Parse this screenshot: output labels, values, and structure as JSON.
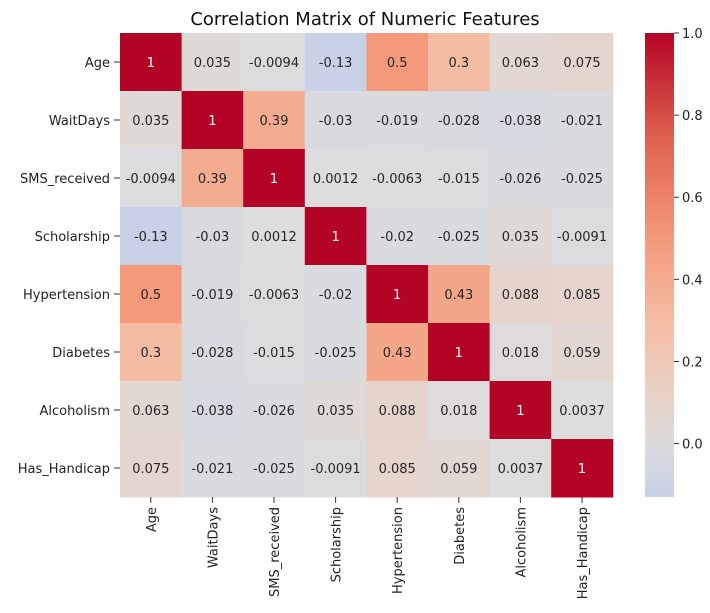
{
  "chart_data": {
    "type": "heatmap",
    "title": "Correlation Matrix of Numeric Features",
    "xlabel": "",
    "ylabel": "",
    "colormap": "coolwarm",
    "color_range": [
      -0.13,
      1.0
    ],
    "colorbar_ticks": [
      "0.0",
      "0.2",
      "0.4",
      "0.6",
      "0.8",
      "1.0"
    ],
    "colorbar_tick_values": [
      0.0,
      0.2,
      0.4,
      0.6,
      0.8,
      1.0
    ],
    "row_labels": [
      "Age",
      "WaitDays",
      "SMS_received",
      "Scholarship",
      "Hypertension",
      "Diabetes",
      "Alcoholism",
      "Has_Handicap"
    ],
    "col_labels": [
      "Age",
      "WaitDays",
      "SMS_received",
      "Scholarship",
      "Hypertension",
      "Diabetes",
      "Alcoholism",
      "Has_Handicap"
    ],
    "values": [
      [
        1,
        0.035,
        -0.0094,
        -0.13,
        0.5,
        0.3,
        0.063,
        0.075
      ],
      [
        0.035,
        1,
        0.39,
        -0.03,
        -0.019,
        -0.028,
        -0.038,
        -0.021
      ],
      [
        -0.0094,
        0.39,
        1,
        0.0012,
        -0.0063,
        -0.015,
        -0.026,
        -0.025
      ],
      [
        -0.13,
        -0.03,
        0.0012,
        1,
        -0.02,
        -0.025,
        0.035,
        -0.0091
      ],
      [
        0.5,
        -0.019,
        -0.0063,
        -0.02,
        1,
        0.43,
        0.088,
        0.085
      ],
      [
        0.3,
        -0.028,
        -0.015,
        -0.025,
        0.43,
        1,
        0.018,
        0.059
      ],
      [
        0.063,
        -0.038,
        -0.026,
        0.035,
        0.088,
        0.018,
        1,
        0.0037
      ],
      [
        0.075,
        -0.021,
        -0.025,
        -0.0091,
        0.085,
        0.059,
        0.0037,
        1
      ]
    ],
    "annotations": [
      [
        "1",
        "0.035",
        "-0.0094",
        "-0.13",
        "0.5",
        "0.3",
        "0.063",
        "0.075"
      ],
      [
        "0.035",
        "1",
        "0.39",
        "-0.03",
        "-0.019",
        "-0.028",
        "-0.038",
        "-0.021"
      ],
      [
        "-0.0094",
        "0.39",
        "1",
        "0.0012",
        "-0.0063",
        "-0.015",
        "-0.026",
        "-0.025"
      ],
      [
        "-0.13",
        "-0.03",
        "0.0012",
        "1",
        "-0.02",
        "-0.025",
        "0.035",
        "-0.0091"
      ],
      [
        "0.5",
        "-0.019",
        "-0.0063",
        "-0.02",
        "1",
        "0.43",
        "0.088",
        "0.085"
      ],
      [
        "0.3",
        "-0.028",
        "-0.015",
        "-0.025",
        "0.43",
        "1",
        "0.018",
        "0.059"
      ],
      [
        "0.063",
        "-0.038",
        "-0.026",
        "0.035",
        "0.088",
        "0.018",
        "1",
        "0.0037"
      ],
      [
        "0.075",
        "-0.021",
        "-0.025",
        "-0.0091",
        "0.085",
        "0.059",
        "0.0037",
        "1"
      ]
    ],
    "grid": false,
    "legend": "colorbar-right"
  }
}
